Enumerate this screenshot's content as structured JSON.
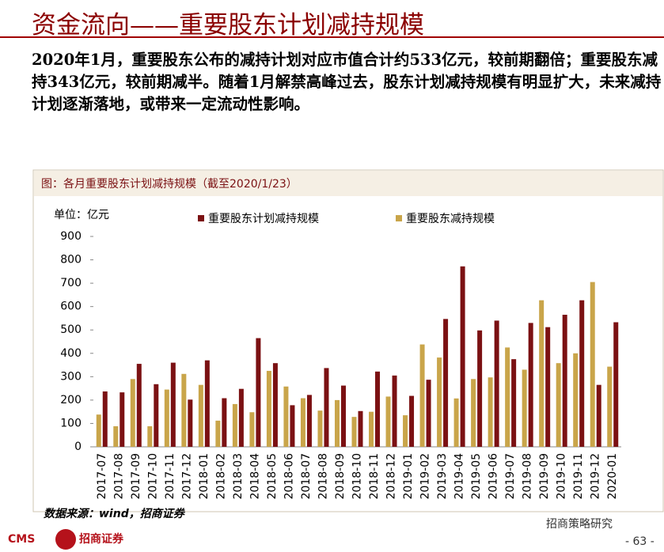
{
  "header": {
    "title": "资金流向——重要股东计划减持规模"
  },
  "paragraph": "2020年1月，重要股东公布的减持计划对应市值合计约533亿元，较前期翻倍；重要股东减持343亿元，较前期减半。随着1月解禁高峰过去，股东计划减持规模有明显扩大，未来减持计划逐渐落地，或带来一定流动性影响。",
  "chart_data": {
    "type": "bar",
    "title": "图：各月重要股东计划减持规模（截至2020/1/23）",
    "ylabel": "单位：亿元",
    "categories": [
      "2017-07",
      "2017-08",
      "2017-09",
      "2017-10",
      "2017-11",
      "2017-12",
      "2018-01",
      "2018-02",
      "2018-03",
      "2018-04",
      "2018-05",
      "2018-06",
      "2018-07",
      "2018-08",
      "2018-09",
      "2018-10",
      "2018-11",
      "2018-12",
      "2019-01",
      "2019-02",
      "2019-03",
      "2019-04",
      "2019-05",
      "2019-06",
      "2019-07",
      "2019-08",
      "2019-09",
      "2019-10",
      "2019-11",
      "2019-12",
      "2020-01"
    ],
    "series": [
      {
        "name": "重要股东减持规模",
        "color": "#c9a54a",
        "values": [
          138,
          88,
          290,
          88,
          245,
          312,
          265,
          112,
          183,
          148,
          325,
          258,
          208,
          155,
          200,
          128,
          150,
          215,
          135,
          438,
          382,
          207,
          290,
          297,
          425,
          330,
          627,
          358,
          400,
          705,
          343
        ]
      },
      {
        "name": "重要股东计划减持规模",
        "color": "#7b1113",
        "values": [
          237,
          233,
          355,
          268,
          360,
          202,
          370,
          208,
          248,
          465,
          358,
          178,
          222,
          337,
          262,
          153,
          322,
          305,
          218,
          287,
          547,
          772,
          498,
          540,
          375,
          530,
          512,
          565,
          627,
          265,
          533
        ]
      }
    ],
    "ylim": [
      0,
      900
    ],
    "yticks": [
      0,
      100,
      200,
      300,
      400,
      500,
      600,
      700,
      800,
      900
    ],
    "source": "数据来源：wind，招商证券"
  },
  "footer": {
    "logo_left": "CMS",
    "logo_right": "招商证券",
    "brand": "招商策略研究",
    "page": "- 63 -"
  }
}
